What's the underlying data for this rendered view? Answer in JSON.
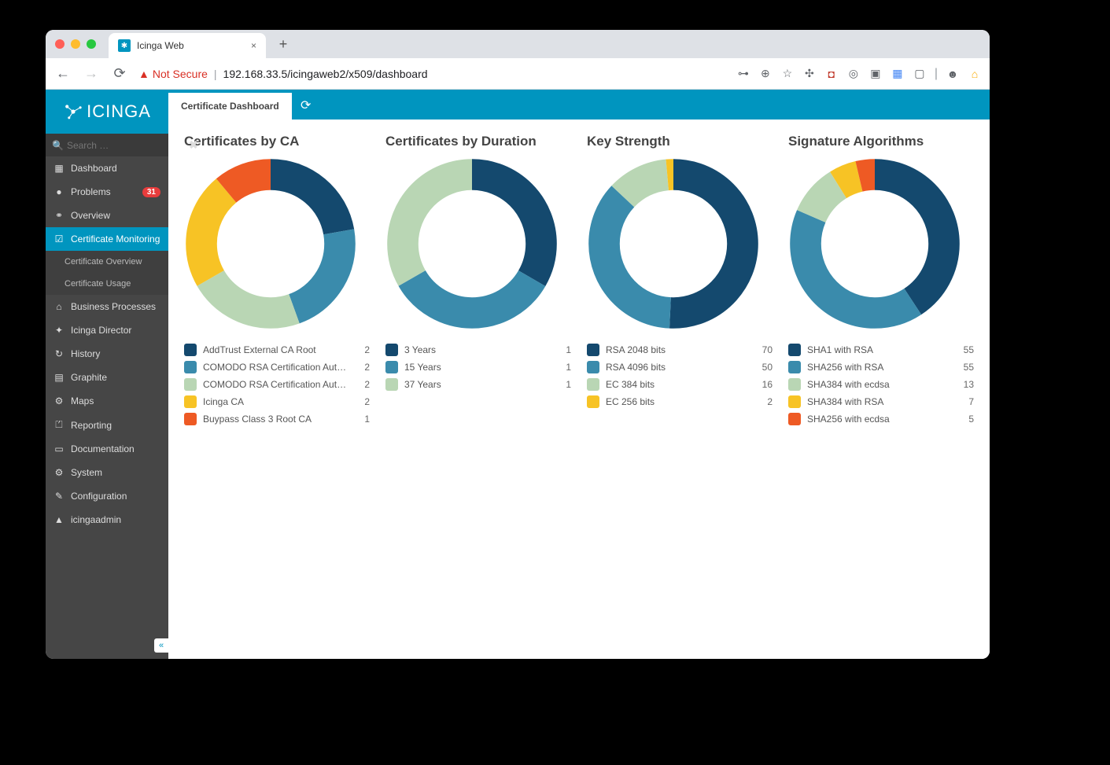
{
  "browser": {
    "tab_title": "Icinga Web",
    "url_not_secure_label": "Not Secure",
    "url_path": "192.168.33.5/icingaweb2/x509/dashboard"
  },
  "app": {
    "logo_text": "ICINGA",
    "search_placeholder": "Search …",
    "tab_label": "Certificate Dashboard"
  },
  "sidebar": {
    "items": [
      {
        "icon": "▦",
        "label": "Dashboard"
      },
      {
        "icon": "●",
        "label": "Problems",
        "badge": "31"
      },
      {
        "icon": "⚭",
        "label": "Overview"
      },
      {
        "icon": "☑",
        "label": "Certificate Monitoring",
        "active": true
      },
      {
        "sub": true,
        "label": "Certificate Overview"
      },
      {
        "sub": true,
        "label": "Certificate Usage"
      },
      {
        "icon": "⌂",
        "label": "Business Processes"
      },
      {
        "icon": "✦",
        "label": "Icinga Director"
      },
      {
        "icon": "↻",
        "label": "History"
      },
      {
        "icon": "▤",
        "label": "Graphite"
      },
      {
        "icon": "⚙",
        "label": "Maps"
      },
      {
        "icon": "⏍",
        "label": "Reporting"
      },
      {
        "icon": "▭",
        "label": "Documentation"
      },
      {
        "icon": "⚙",
        "label": "System"
      },
      {
        "icon": "✎",
        "label": "Configuration"
      },
      {
        "icon": "▲",
        "label": "icingaadmin"
      }
    ]
  },
  "palette": {
    "darkblue": "#14496e",
    "teal": "#3a8bac",
    "sage": "#b9d6b4",
    "yellow": "#f7c325",
    "orange": "#ee5a24"
  },
  "charts": [
    {
      "title": "Certificates by CA",
      "type": "donut",
      "ring_width": 36,
      "background": "#ffffff",
      "series": [
        {
          "label": "AddTrust External CA Root",
          "value": 2,
          "color": "#14496e"
        },
        {
          "label": "COMODO RSA Certification Authority",
          "value": 2,
          "color": "#3a8bac"
        },
        {
          "label": "COMODO RSA Certification Authority",
          "value": 2,
          "color": "#b9d6b4"
        },
        {
          "label": "Icinga CA",
          "value": 2,
          "color": "#f7c325"
        },
        {
          "label": "Buypass Class 3 Root CA",
          "value": 1,
          "color": "#ee5a24"
        }
      ]
    },
    {
      "title": "Certificates by Duration",
      "type": "donut",
      "ring_width": 36,
      "background": "#ffffff",
      "series": [
        {
          "label": "3 Years",
          "value": 1,
          "color": "#14496e"
        },
        {
          "label": "15 Years",
          "value": 1,
          "color": "#3a8bac"
        },
        {
          "label": "37 Years",
          "value": 1,
          "color": "#b9d6b4"
        }
      ]
    },
    {
      "title": "Key Strength",
      "type": "donut",
      "ring_width": 36,
      "background": "#ffffff",
      "series": [
        {
          "label": "RSA 2048 bits",
          "value": 70,
          "color": "#14496e"
        },
        {
          "label": "RSA 4096 bits",
          "value": 50,
          "color": "#3a8bac"
        },
        {
          "label": "EC 384 bits",
          "value": 16,
          "color": "#b9d6b4"
        },
        {
          "label": "EC 256 bits",
          "value": 2,
          "color": "#f7c325"
        }
      ]
    },
    {
      "title": "Signature Algorithms",
      "type": "donut",
      "ring_width": 36,
      "background": "#ffffff",
      "series": [
        {
          "label": "SHA1 with RSA",
          "value": 55,
          "color": "#14496e"
        },
        {
          "label": "SHA256 with RSA",
          "value": 55,
          "color": "#3a8bac"
        },
        {
          "label": "SHA384 with ecdsa",
          "value": 13,
          "color": "#b9d6b4"
        },
        {
          "label": "SHA384 with RSA",
          "value": 7,
          "color": "#f7c325"
        },
        {
          "label": "SHA256 with ecdsa",
          "value": 5,
          "color": "#ee5a24"
        }
      ]
    }
  ]
}
